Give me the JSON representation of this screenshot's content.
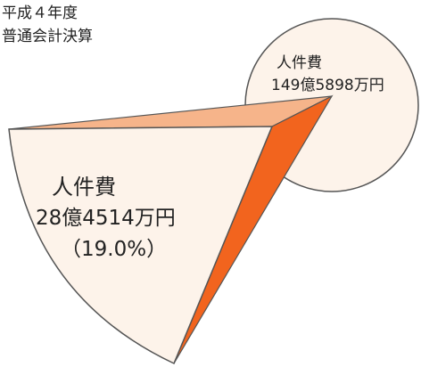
{
  "title": {
    "line1": "平成４年度",
    "line2": "普通会計決算"
  },
  "total": {
    "label": "人件費",
    "amount": "149億5898万円"
  },
  "part": {
    "label": "人件費",
    "amount": "28億4514万円",
    "share": "（19.0%）"
  }
}
